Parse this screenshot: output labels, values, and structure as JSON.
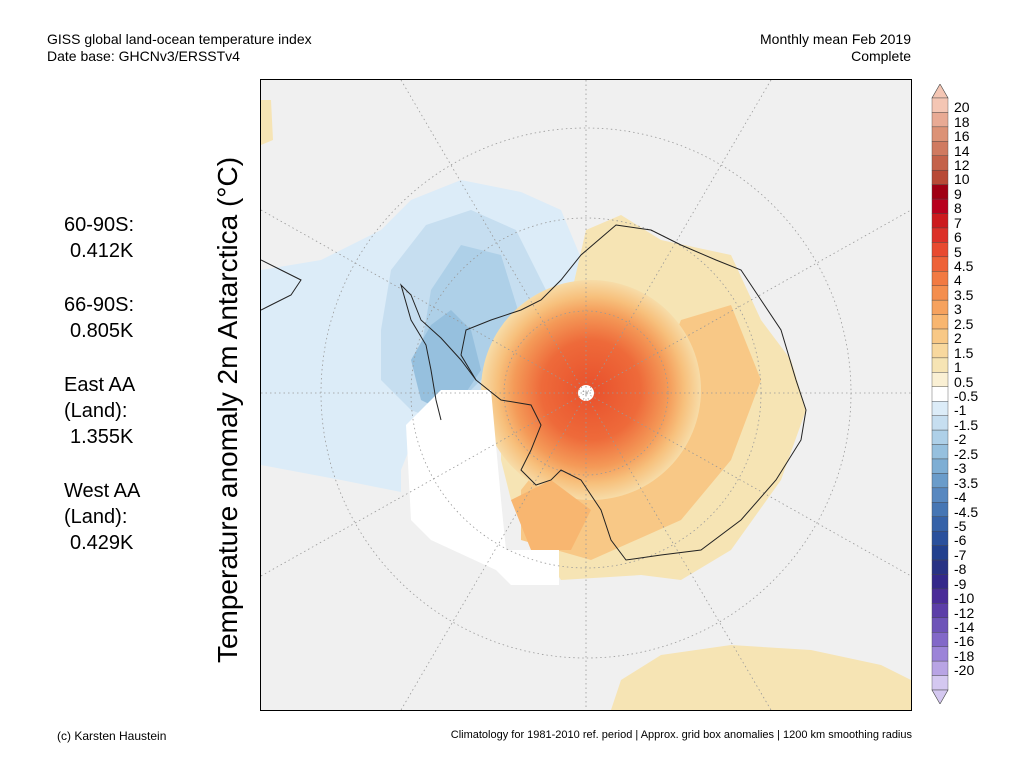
{
  "header": {
    "title_line1": "GISS global land-ocean temperature index",
    "title_line2": "Date base: GHCNv3/ERSSTv4",
    "period_line1": "Monthly mean Feb 2019",
    "period_line2": "Complete"
  },
  "stats": [
    {
      "name_lines": [
        "60-90S:"
      ],
      "value": "0.412K"
    },
    {
      "name_lines": [
        "66-90S:"
      ],
      "value": "0.805K"
    },
    {
      "name_lines": [
        "East AA",
        "(Land):"
      ],
      "value": "1.355K"
    },
    {
      "name_lines": [
        "West AA",
        "(Land):"
      ],
      "value": "0.429K"
    }
  ],
  "ylabel": "Temperature anomaly 2m Antarctica (°C)",
  "colorbar": {
    "labels": [
      "20",
      "18",
      "16",
      "14",
      "12",
      "10",
      "9",
      "8",
      "7",
      "6",
      "5",
      "4.5",
      "4",
      "3.5",
      "3",
      "2.5",
      "2",
      "1.5",
      "1",
      "0.5",
      "-0.5",
      "-1",
      "-1.5",
      "-2",
      "-2.5",
      "-3",
      "-3.5",
      "-4",
      "-4.5",
      "-5",
      "-6",
      "-7",
      "-8",
      "-9",
      "-10",
      "-12",
      "-14",
      "-16",
      "-18",
      "-20"
    ],
    "colors": [
      "#f4c6b4",
      "#e8aa94",
      "#dc9276",
      "#d07a60",
      "#c4624a",
      "#b84a36",
      "#a00014",
      "#b8001e",
      "#cc1a1e",
      "#dc3028",
      "#e84a30",
      "#ee6238",
      "#f27a42",
      "#f48e4e",
      "#f6a25e",
      "#f8b670",
      "#f8c886",
      "#f8d89e",
      "#f6e4b4",
      "#faf0d4",
      "#ffffff",
      "#dcecf8",
      "#c6def0",
      "#aed0e8",
      "#96c0de",
      "#7eaed4",
      "#6a9cca",
      "#5888c0",
      "#4676b4",
      "#3662a8",
      "#2a509c",
      "#22408e",
      "#283284",
      "#34288a",
      "#4a2c98",
      "#5c3ea8",
      "#6e54b8",
      "#8268c8",
      "#9c84d8",
      "#b8a4e4",
      "#d4c8f0"
    ]
  },
  "map": {
    "region_values_K": {
      "60-90S": 0.412,
      "66-90S": 0.805,
      "East AA (Land)": 1.355,
      "West AA (Land)": 0.429
    }
  },
  "footer": {
    "left": "(c) Karsten Haustein",
    "right": "Climatology for 1981-2010 ref. period | Approx. grid box anomalies | 1200 km smoothing radius"
  }
}
